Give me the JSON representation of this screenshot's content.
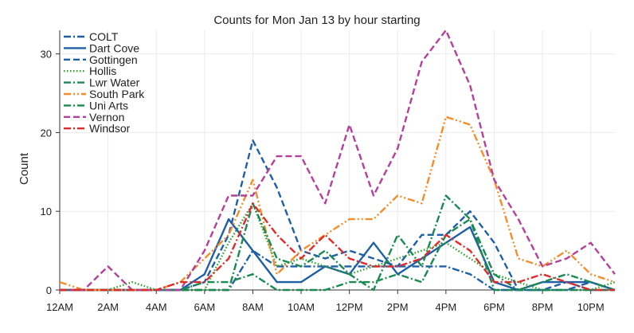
{
  "chart_data": {
    "type": "line",
    "title": "Counts for Mon Jan 13 by hour starting",
    "xlabel": "",
    "ylabel": "Count",
    "x": [
      0,
      1,
      2,
      3,
      4,
      5,
      6,
      7,
      8,
      9,
      10,
      11,
      12,
      13,
      14,
      15,
      16,
      17,
      18,
      19,
      20,
      21,
      22,
      23
    ],
    "xlim": [
      0,
      23
    ],
    "ylim": [
      0,
      33
    ],
    "x_ticks": [
      {
        "x": 0,
        "label": "12AM"
      },
      {
        "x": 2,
        "label": "2AM"
      },
      {
        "x": 4,
        "label": "4AM"
      },
      {
        "x": 6,
        "label": "6AM"
      },
      {
        "x": 8,
        "label": "8AM"
      },
      {
        "x": 10,
        "label": "10AM"
      },
      {
        "x": 12,
        "label": "12PM"
      },
      {
        "x": 14,
        "label": "2PM"
      },
      {
        "x": 16,
        "label": "4PM"
      },
      {
        "x": 18,
        "label": "6PM"
      },
      {
        "x": 20,
        "label": "8PM"
      },
      {
        "x": 22,
        "label": "10PM"
      }
    ],
    "y_ticks": [
      0,
      10,
      20,
      30
    ],
    "grid": true,
    "legend_position": "top-left",
    "series": [
      {
        "name": "COLT",
        "color": "#1f5fa8",
        "dash": "dashdot",
        "values": [
          0,
          0,
          0,
          0,
          0,
          0,
          0,
          0,
          5,
          3,
          3,
          3,
          3,
          3,
          3,
          3,
          3,
          2,
          0,
          0,
          0,
          0,
          1,
          0
        ]
      },
      {
        "name": "Dart Cove",
        "color": "#1f5fa8",
        "dash": "solid",
        "values": [
          0,
          0,
          0,
          0,
          0,
          0,
          2,
          9,
          5,
          1,
          1,
          3,
          2,
          6,
          2,
          4,
          6,
          8,
          1,
          0,
          1,
          1,
          1,
          0
        ]
      },
      {
        "name": "Gottingen",
        "color": "#1f5fa8",
        "dash": "dashed",
        "values": [
          0,
          0,
          0,
          0,
          0,
          0,
          1,
          7,
          19,
          13,
          5,
          4,
          5,
          4,
          3,
          7,
          7,
          10,
          6,
          0,
          0,
          1,
          0,
          0
        ]
      },
      {
        "name": "Hollis",
        "color": "#2ca02c",
        "dash": "dotted",
        "values": [
          0,
          0,
          0,
          1,
          0,
          0,
          0,
          6,
          11,
          3,
          4,
          3,
          2,
          3,
          4,
          5,
          6,
          4,
          2,
          1,
          0,
          0,
          0,
          1
        ]
      },
      {
        "name": "Lwr Water",
        "color": "#1a8a52",
        "dash": "dashdot",
        "values": [
          0,
          0,
          0,
          0,
          0,
          0,
          1,
          1,
          2,
          0,
          0,
          0,
          1,
          1,
          2,
          1,
          7,
          9,
          2,
          0,
          0,
          0,
          0,
          0
        ]
      },
      {
        "name": "South Park",
        "color": "#f28e2b",
        "dash": "dashdotdot",
        "values": [
          1,
          0,
          0,
          0,
          0,
          1,
          4,
          7,
          14,
          2,
          5,
          7,
          9,
          9,
          12,
          11,
          22,
          21,
          14,
          4,
          3,
          5,
          2,
          1
        ]
      },
      {
        "name": "Uni Arts",
        "color": "#1a8a52",
        "dash": "dashdot",
        "values": [
          0,
          0,
          0,
          0,
          0,
          0,
          0,
          0,
          11,
          4,
          3,
          5,
          2,
          0,
          7,
          3,
          12,
          9,
          0,
          0,
          1,
          2,
          1,
          0
        ]
      },
      {
        "name": "Vernon",
        "color": "#b5409c",
        "dash": "dashed",
        "values": [
          0,
          0,
          3,
          0,
          0,
          0,
          5,
          12,
          12,
          17,
          17,
          11,
          21,
          12,
          18,
          29,
          33,
          26,
          14,
          9,
          3,
          4,
          6,
          2
        ]
      },
      {
        "name": "Windsor",
        "color": "#e02b2b",
        "dash": "dashdot",
        "values": [
          0,
          0,
          0,
          0,
          0,
          1,
          1,
          4,
          11,
          7,
          4,
          7,
          4,
          3,
          3,
          4,
          7,
          5,
          1,
          1,
          2,
          1,
          0,
          0
        ]
      }
    ]
  }
}
